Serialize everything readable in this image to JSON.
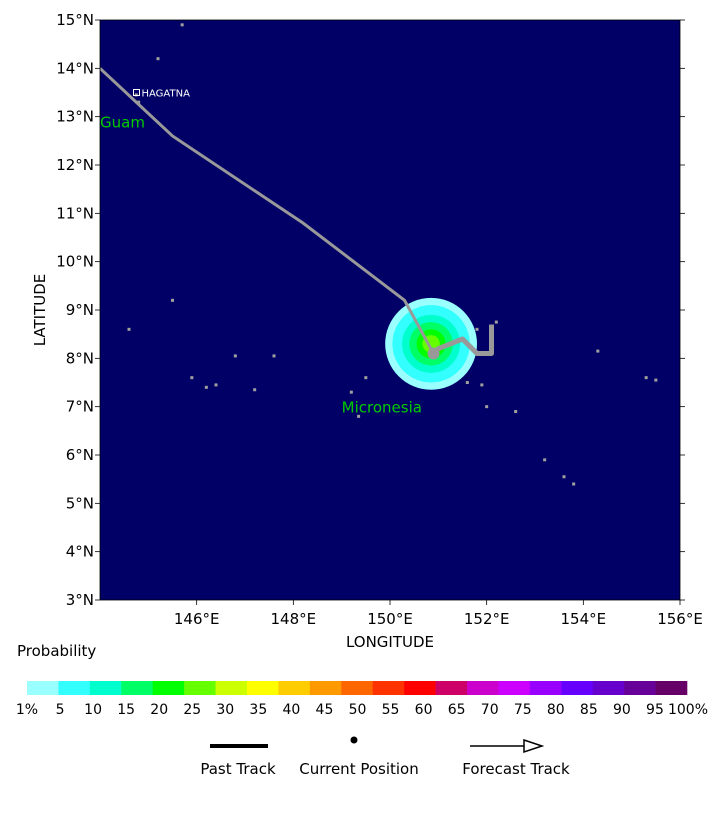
{
  "map": {
    "lat_labels": [
      "15°N",
      "14°N",
      "13°N",
      "12°N",
      "11°N",
      "10°N",
      "9°N",
      "8°N",
      "7°N",
      "6°N",
      "5°N",
      "4°N",
      "3°N"
    ],
    "lon_labels": [
      "146°E",
      "148°E",
      "150°E",
      "152°E",
      "154°E",
      "156°E"
    ],
    "x_axis_title": "LONGITUDE",
    "y_axis_title": "LATITUDE",
    "extent": {
      "lon_min": 144,
      "lon_max": 156,
      "lat_min": 3,
      "lat_max": 15
    },
    "ocean_color": "#000066",
    "land_color": "#a0a0a0",
    "place_labels": [
      {
        "name": "Guam",
        "lon": 144.0,
        "lat": 12.9,
        "color": "#00cc00",
        "size": "large"
      },
      {
        "name": "Micronesia",
        "lon": 149.0,
        "lat": 7.0,
        "color": "#00cc00",
        "size": "large"
      },
      {
        "name": "HAGATNA",
        "lon": 144.9,
        "lat": 13.5,
        "color": "#ffffff",
        "size": "small"
      }
    ],
    "past_track": [
      [
        144.0,
        14.0
      ],
      [
        145.5,
        12.6
      ],
      [
        148.2,
        10.8
      ],
      [
        150.3,
        9.2
      ],
      [
        150.9,
        8.1
      ]
    ],
    "forecast_track": [
      [
        150.9,
        8.1
      ],
      [
        151.0,
        8.2
      ],
      [
        151.5,
        8.4
      ],
      [
        151.8,
        8.1
      ],
      [
        152.1,
        8.1
      ],
      [
        152.1,
        8.7
      ]
    ],
    "current_position": [
      150.9,
      8.1
    ],
    "track_color": "#999999",
    "probability_center": [
      150.85,
      8.3
    ],
    "probability_rings": [
      {
        "radius_deg": 0.95,
        "color": "#99ffff"
      },
      {
        "radius_deg": 0.8,
        "color": "#33ffff"
      },
      {
        "radius_deg": 0.6,
        "color": "#00ffcc"
      },
      {
        "radius_deg": 0.45,
        "color": "#00ff66"
      },
      {
        "radius_deg": 0.3,
        "color": "#00ff00"
      },
      {
        "radius_deg": 0.18,
        "color": "#66ff00"
      }
    ]
  },
  "legend": {
    "title": "Probability",
    "colors": [
      "#99ffff",
      "#33ffff",
      "#00ffcc",
      "#00ff66",
      "#00ff00",
      "#66ff00",
      "#ccff00",
      "#ffff00",
      "#ffcc00",
      "#ff9900",
      "#ff6600",
      "#ff3300",
      "#ff0000",
      "#cc0066",
      "#cc00cc",
      "#cc00ff",
      "#9900ff",
      "#6600ff",
      "#6600cc",
      "#660099",
      "#660066"
    ],
    "labels": [
      "1%",
      "5",
      "10",
      "15",
      "20",
      "25",
      "30",
      "35",
      "40",
      "45",
      "50",
      "55",
      "60",
      "65",
      "70",
      "75",
      "80",
      "85",
      "90",
      "95",
      "100%"
    ],
    "key": {
      "past_track": "Past Track",
      "current_position": "Current Position",
      "forecast_track": "Forecast Track"
    }
  }
}
